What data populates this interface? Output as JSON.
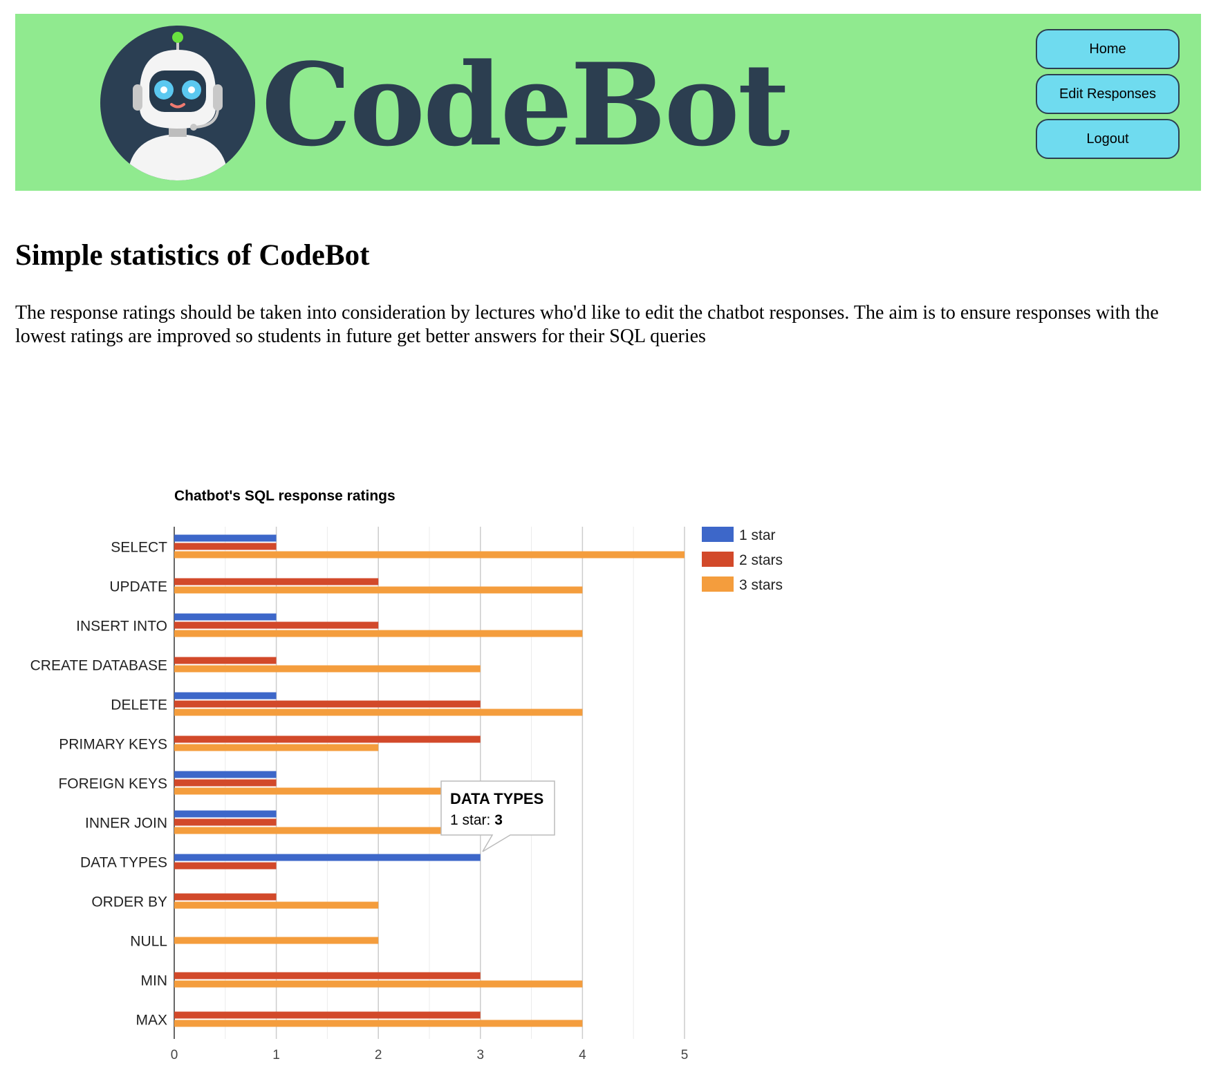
{
  "brand": {
    "name": "CodeBot"
  },
  "nav": {
    "home": "Home",
    "edit": "Edit Responses",
    "logout": "Logout"
  },
  "page": {
    "title": "Simple statistics of CodeBot",
    "intro": "The response ratings should be taken into consideration by lectures who'd like to edit the chatbot responses. The aim is to ensure responses with the lowest ratings are improved so students in future get better answers for their SQL queries"
  },
  "tooltip": {
    "category": "DATA TYPES",
    "series_label": "1 star: ",
    "value": "3"
  },
  "colors": {
    "header_bg": "#90ea8f",
    "brand_text": "#2c3e50",
    "button_bg": "#6fdbef",
    "series_1": "#3d67c9",
    "series_2": "#d2492a",
    "series_3": "#f49d3d"
  },
  "chart_data": {
    "type": "bar",
    "orientation": "horizontal",
    "title": "Chatbot's SQL response ratings",
    "categories": [
      "SELECT",
      "UPDATE",
      "INSERT INTO",
      "CREATE DATABASE",
      "DELETE",
      "PRIMARY KEYS",
      "FOREIGN KEYS",
      "INNER JOIN",
      "DATA TYPES",
      "ORDER BY",
      "NULL",
      "MIN",
      "MAX"
    ],
    "series": [
      {
        "name": "1 star",
        "color": "#3d67c9",
        "values": [
          1,
          0,
          1,
          0,
          1,
          0,
          1,
          1,
          3,
          0,
          0,
          0,
          0
        ]
      },
      {
        "name": "2 stars",
        "color": "#d2492a",
        "values": [
          1,
          2,
          2,
          1,
          3,
          3,
          1,
          1,
          1,
          1,
          0,
          3,
          3
        ]
      },
      {
        "name": "3 stars",
        "color": "#f49d3d",
        "values": [
          5,
          4,
          4,
          3,
          4,
          2,
          3,
          3,
          0,
          2,
          2,
          4,
          4
        ]
      }
    ],
    "xlim": [
      0,
      5
    ],
    "xticks": [
      "0",
      "1",
      "2",
      "3",
      "4",
      "5"
    ],
    "grid": true,
    "legend": "right"
  }
}
